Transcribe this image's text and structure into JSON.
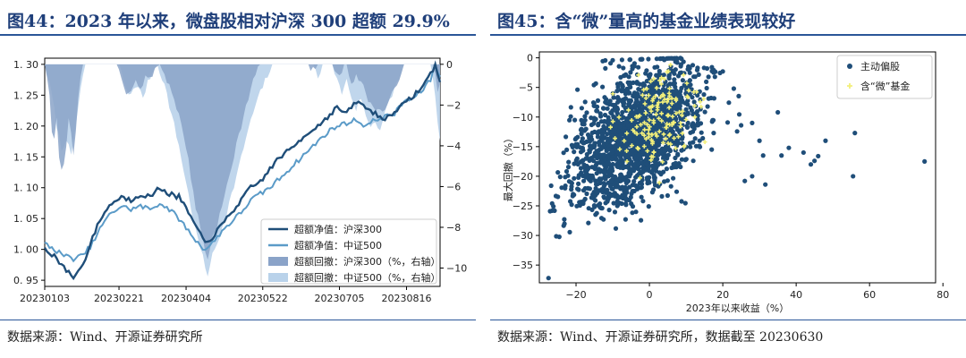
{
  "left": {
    "title": "图44：2023 年以来，微盘股相对沪深 300 超额 29.9%",
    "source": "数据来源：Wind、开源证券研究所"
  },
  "right": {
    "title": "图45：含“微”量高的基金业绩表现较好",
    "source": "数据来源：Wind、开源证券研究所，数据截至 20230630"
  },
  "colors": {
    "title": "#1f3f7a",
    "rule": "#2a5698",
    "excess_hs300": "#1f4e79",
    "excess_zz500": "#5b9bc8",
    "dd_hs300": "#8aa3c8",
    "dd_zz500": "#b9d2ea",
    "funds": "#1f4e79",
    "micro_funds": "#f2ef7a"
  },
  "chart_data": [
    {
      "type": "line",
      "title": "",
      "x_ticks": [
        "20230103",
        "20230221",
        "20230404",
        "20230522",
        "20230705",
        "20230816"
      ],
      "x_tick_index": [
        0,
        31,
        59,
        91,
        123,
        151
      ],
      "n_days": 165,
      "ylim": [
        0.94,
        1.31
      ],
      "yticks": [
        0.95,
        1.0,
        1.05,
        1.1,
        1.15,
        1.2,
        1.25,
        1.3
      ],
      "y2lim": [
        -10.9,
        0.3
      ],
      "y2ticks": [
        0,
        -2,
        -4,
        -6,
        -8,
        -10
      ],
      "legend_position": "lower-right",
      "series": [
        {
          "name": "超额净值：沪深300",
          "axis": "left",
          "style": "line",
          "knots": [
            [
              0,
              1.0
            ],
            [
              4,
              0.99
            ],
            [
              8,
              0.97
            ],
            [
              12,
              0.955
            ],
            [
              16,
              0.975
            ],
            [
              20,
              1.02
            ],
            [
              24,
              1.055
            ],
            [
              28,
              1.075
            ],
            [
              32,
              1.085
            ],
            [
              36,
              1.08
            ],
            [
              40,
              1.09
            ],
            [
              44,
              1.085
            ],
            [
              48,
              1.1
            ],
            [
              52,
              1.09
            ],
            [
              56,
              1.085
            ],
            [
              60,
              1.06
            ],
            [
              64,
              1.03
            ],
            [
              67,
              1.01
            ],
            [
              70,
              1.02
            ],
            [
              74,
              1.04
            ],
            [
              78,
              1.06
            ],
            [
              82,
              1.08
            ],
            [
              86,
              1.1
            ],
            [
              90,
              1.11
            ],
            [
              94,
              1.13
            ],
            [
              98,
              1.15
            ],
            [
              102,
              1.16
            ],
            [
              106,
              1.175
            ],
            [
              110,
              1.19
            ],
            [
              114,
              1.2
            ],
            [
              118,
              1.215
            ],
            [
              122,
              1.23
            ],
            [
              126,
              1.22
            ],
            [
              130,
              1.24
            ],
            [
              134,
              1.23
            ],
            [
              138,
              1.22
            ],
            [
              142,
              1.21
            ],
            [
              146,
              1.225
            ],
            [
              150,
              1.235
            ],
            [
              154,
              1.25
            ],
            [
              158,
              1.265
            ],
            [
              161,
              1.285
            ],
            [
              163,
              1.3
            ],
            [
              165,
              1.27
            ]
          ]
        },
        {
          "name": "超额净值：中证500",
          "axis": "left",
          "style": "line",
          "knots": [
            [
              0,
              1.01
            ],
            [
              4,
              1.0
            ],
            [
              8,
              0.99
            ],
            [
              12,
              0.985
            ],
            [
              16,
              0.99
            ],
            [
              20,
              1.01
            ],
            [
              24,
              1.04
            ],
            [
              28,
              1.06
            ],
            [
              32,
              1.07
            ],
            [
              36,
              1.065
            ],
            [
              40,
              1.07
            ],
            [
              44,
              1.065
            ],
            [
              48,
              1.075
            ],
            [
              52,
              1.065
            ],
            [
              56,
              1.05
            ],
            [
              60,
              1.03
            ],
            [
              64,
              1.01
            ],
            [
              67,
              1.0
            ],
            [
              70,
              1.01
            ],
            [
              74,
              1.03
            ],
            [
              78,
              1.045
            ],
            [
              82,
              1.06
            ],
            [
              86,
              1.08
            ],
            [
              90,
              1.09
            ],
            [
              94,
              1.1
            ],
            [
              98,
              1.115
            ],
            [
              102,
              1.13
            ],
            [
              106,
              1.145
            ],
            [
              110,
              1.16
            ],
            [
              114,
              1.175
            ],
            [
              118,
              1.19
            ],
            [
              122,
              1.2
            ],
            [
              126,
              1.205
            ],
            [
              130,
              1.21
            ],
            [
              134,
              1.2
            ],
            [
              138,
              1.21
            ],
            [
              142,
              1.215
            ],
            [
              146,
              1.22
            ],
            [
              150,
              1.24
            ],
            [
              154,
              1.245
            ],
            [
              158,
              1.26
            ],
            [
              161,
              1.275
            ],
            [
              163,
              1.3
            ],
            [
              165,
              1.28
            ]
          ]
        },
        {
          "name": "超额回撤：沪深300（%，右轴）",
          "axis": "right",
          "style": "area",
          "knots": [
            [
              0,
              0
            ],
            [
              2,
              -1.5
            ],
            [
              3,
              -3.5
            ],
            [
              4,
              -3.8
            ],
            [
              5,
              -2.5
            ],
            [
              6,
              -4.5
            ],
            [
              7,
              -5.3
            ],
            [
              8,
              -5.0
            ],
            [
              9,
              -4.2
            ],
            [
              10,
              -2.8
            ],
            [
              11,
              -3.2
            ],
            [
              12,
              -4.6
            ],
            [
              13,
              -3.2
            ],
            [
              14,
              -1.8
            ],
            [
              15,
              -0.5
            ],
            [
              16,
              0
            ],
            [
              30,
              0
            ],
            [
              32,
              -0.8
            ],
            [
              34,
              -1.5
            ],
            [
              36,
              -1.2
            ],
            [
              38,
              -0.6
            ],
            [
              40,
              -1.3
            ],
            [
              42,
              -0.5
            ],
            [
              44,
              -0.8
            ],
            [
              46,
              -0.2
            ],
            [
              48,
              0
            ],
            [
              50,
              -0.5
            ],
            [
              53,
              -1.3
            ],
            [
              56,
              -2.5
            ],
            [
              59,
              -4.0
            ],
            [
              61,
              -5.5
            ],
            [
              63,
              -7.0
            ],
            [
              65,
              -8.0
            ],
            [
              67,
              -9.2
            ],
            [
              68,
              -9.5
            ],
            [
              69,
              -9.0
            ],
            [
              70,
              -8.5
            ],
            [
              72,
              -7.8
            ],
            [
              74,
              -7.0
            ],
            [
              76,
              -6.0
            ],
            [
              78,
              -5.0
            ],
            [
              80,
              -4.0
            ],
            [
              82,
              -3.0
            ],
            [
              84,
              -2.0
            ],
            [
              86,
              -1.2
            ],
            [
              88,
              -0.5
            ],
            [
              90,
              0
            ],
            [
              110,
              0
            ],
            [
              112,
              -0.3
            ],
            [
              114,
              0
            ],
            [
              120,
              0
            ],
            [
              122,
              -0.6
            ],
            [
              124,
              -0.3
            ],
            [
              126,
              0
            ],
            [
              128,
              -0.9
            ],
            [
              130,
              -0.5
            ],
            [
              132,
              -0.9
            ],
            [
              134,
              -1.4
            ],
            [
              136,
              -2.0
            ],
            [
              138,
              -2.1
            ],
            [
              140,
              -2.3
            ],
            [
              142,
              -2.2
            ],
            [
              144,
              -1.8
            ],
            [
              146,
              -1.2
            ],
            [
              148,
              -0.6
            ],
            [
              150,
              0
            ],
            [
              162,
              0
            ],
            [
              163,
              -0.6
            ],
            [
              164,
              -1.4
            ],
            [
              165,
              -1.0
            ]
          ]
        },
        {
          "name": "超额回撤：中证500（%，右轴）",
          "axis": "right",
          "style": "area",
          "knots": [
            [
              0,
              0
            ],
            [
              3,
              -1.5
            ],
            [
              5,
              -3.0
            ],
            [
              7,
              -4.2
            ],
            [
              9,
              -3.6
            ],
            [
              11,
              -4.6
            ],
            [
              13,
              -3.0
            ],
            [
              15,
              -1.2
            ],
            [
              17,
              0
            ],
            [
              31,
              0
            ],
            [
              33,
              -0.8
            ],
            [
              35,
              -1.6
            ],
            [
              38,
              -1.0
            ],
            [
              41,
              -1.6
            ],
            [
              44,
              -0.6
            ],
            [
              47,
              0
            ],
            [
              50,
              -1.0
            ],
            [
              53,
              -2.5
            ],
            [
              56,
              -4.0
            ],
            [
              59,
              -5.8
            ],
            [
              61,
              -7.0
            ],
            [
              63,
              -8.2
            ],
            [
              65,
              -9.0
            ],
            [
              67,
              -10.0
            ],
            [
              68,
              -10.3
            ],
            [
              69,
              -9.8
            ],
            [
              70,
              -9.4
            ],
            [
              72,
              -8.8
            ],
            [
              74,
              -8.0
            ],
            [
              76,
              -7.2
            ],
            [
              78,
              -6.4
            ],
            [
              80,
              -5.5
            ],
            [
              82,
              -4.6
            ],
            [
              84,
              -3.6
            ],
            [
              86,
              -2.8
            ],
            [
              88,
              -2.0
            ],
            [
              90,
              -1.4
            ],
            [
              92,
              -0.8
            ],
            [
              94,
              -0.3
            ],
            [
              96,
              0
            ],
            [
              112,
              0
            ],
            [
              114,
              -0.6
            ],
            [
              116,
              0
            ],
            [
              120,
              0
            ],
            [
              122,
              -0.8
            ],
            [
              124,
              -1.4
            ],
            [
              126,
              -0.8
            ],
            [
              128,
              -1.6
            ],
            [
              130,
              -2.2
            ],
            [
              132,
              -1.6
            ],
            [
              134,
              -2.6
            ],
            [
              136,
              -3.0
            ],
            [
              138,
              -2.8
            ],
            [
              140,
              -3.2
            ],
            [
              142,
              -2.4
            ],
            [
              144,
              -1.8
            ],
            [
              146,
              -1.2
            ],
            [
              148,
              -0.6
            ],
            [
              150,
              0
            ],
            [
              161,
              0
            ],
            [
              163,
              -1.6
            ],
            [
              164,
              -3.0
            ],
            [
              165,
              -3.6
            ]
          ]
        }
      ]
    },
    {
      "type": "scatter",
      "title": "",
      "xlabel": "2023年以来收益（%）",
      "ylabel": "最大回撤（%）",
      "xlim": [
        -30,
        78
      ],
      "ylim": [
        -38,
        1
      ],
      "xticks": [
        -20,
        0,
        20,
        40,
        60,
        80
      ],
      "yticks": [
        0,
        -5,
        -10,
        -15,
        -20,
        -25,
        -30,
        -35
      ],
      "legend_position": "top-right",
      "series": [
        {
          "name": "主动偏股",
          "color": "#1f4e79",
          "count": 1800,
          "center": [
            -3,
            -13
          ],
          "spread": [
            9,
            5.2
          ],
          "slope": 0.35
        },
        {
          "name": "含“微”基金",
          "color": "#f2ef7a",
          "count": 150,
          "center": [
            2,
            -10
          ],
          "spread": [
            6,
            4.2
          ],
          "slope": 0.2
        }
      ],
      "outlier_points": [
        [
          75,
          -17.5
        ],
        [
          55.5,
          -20
        ],
        [
          56,
          -12.7
        ],
        [
          48,
          -14
        ],
        [
          46,
          -16.6
        ],
        [
          45,
          -17.4
        ],
        [
          44,
          -18
        ],
        [
          42,
          -16
        ],
        [
          38,
          -15.2
        ],
        [
          31,
          -16.5
        ],
        [
          31.6,
          -21.4
        ],
        [
          28,
          -20
        ],
        [
          26,
          -20.8
        ],
        [
          30,
          -14
        ],
        [
          35,
          -9.2
        ],
        [
          25,
          -11.4
        ],
        [
          36,
          -16.5
        ],
        [
          20,
          -2.3
        ],
        [
          23,
          -5.2
        ],
        [
          28,
          -11
        ]
      ]
    }
  ]
}
